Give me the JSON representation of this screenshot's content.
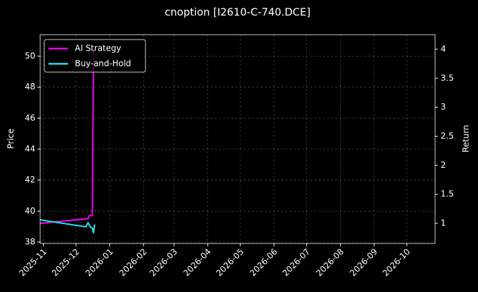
{
  "chart_data": {
    "type": "line",
    "title": "cnoption [I2610-C-740.DCE]",
    "ylabel": "Price",
    "y2label": "Return",
    "xlim": [
      "2025-10-29",
      "2026-10-27"
    ],
    "xticks": [
      "2025-11",
      "2025-12",
      "2026-01",
      "2026-02",
      "2026-03",
      "2026-04",
      "2026-05",
      "2026-06",
      "2026-07",
      "2026-08",
      "2026-09",
      "2026-10"
    ],
    "ylim": [
      37.91,
      51.39
    ],
    "yticks": [
      38,
      40,
      42,
      44,
      46,
      48,
      50
    ],
    "y2lim": [
      0.653,
      4.25
    ],
    "y2ticks": [
      1.0,
      1.5,
      2.0,
      2.5,
      3.0,
      3.5,
      4.0
    ],
    "grid": true,
    "legend": "upper left",
    "series": [
      {
        "name": "AI Strategy",
        "color": "#ff00ff",
        "axis": "y2",
        "x": [
          "2025-10-29",
          "2025-11-20",
          "2025-12-12",
          "2025-12-13",
          "2025-12-16",
          "2025-12-17"
        ],
        "values": [
          1.0,
          1.04,
          1.08,
          1.13,
          1.14,
          4.0
        ]
      },
      {
        "name": "Buy-and-Hold",
        "color": "#22e5ee",
        "axis": "y2",
        "x": [
          "2025-10-29",
          "2025-12-10",
          "2025-12-12",
          "2025-12-14",
          "2025-12-16",
          "2025-12-17",
          "2025-12-18"
        ],
        "values": [
          1.06,
          0.94,
          1.01,
          0.94,
          0.92,
          0.83,
          0.98
        ]
      }
    ]
  }
}
